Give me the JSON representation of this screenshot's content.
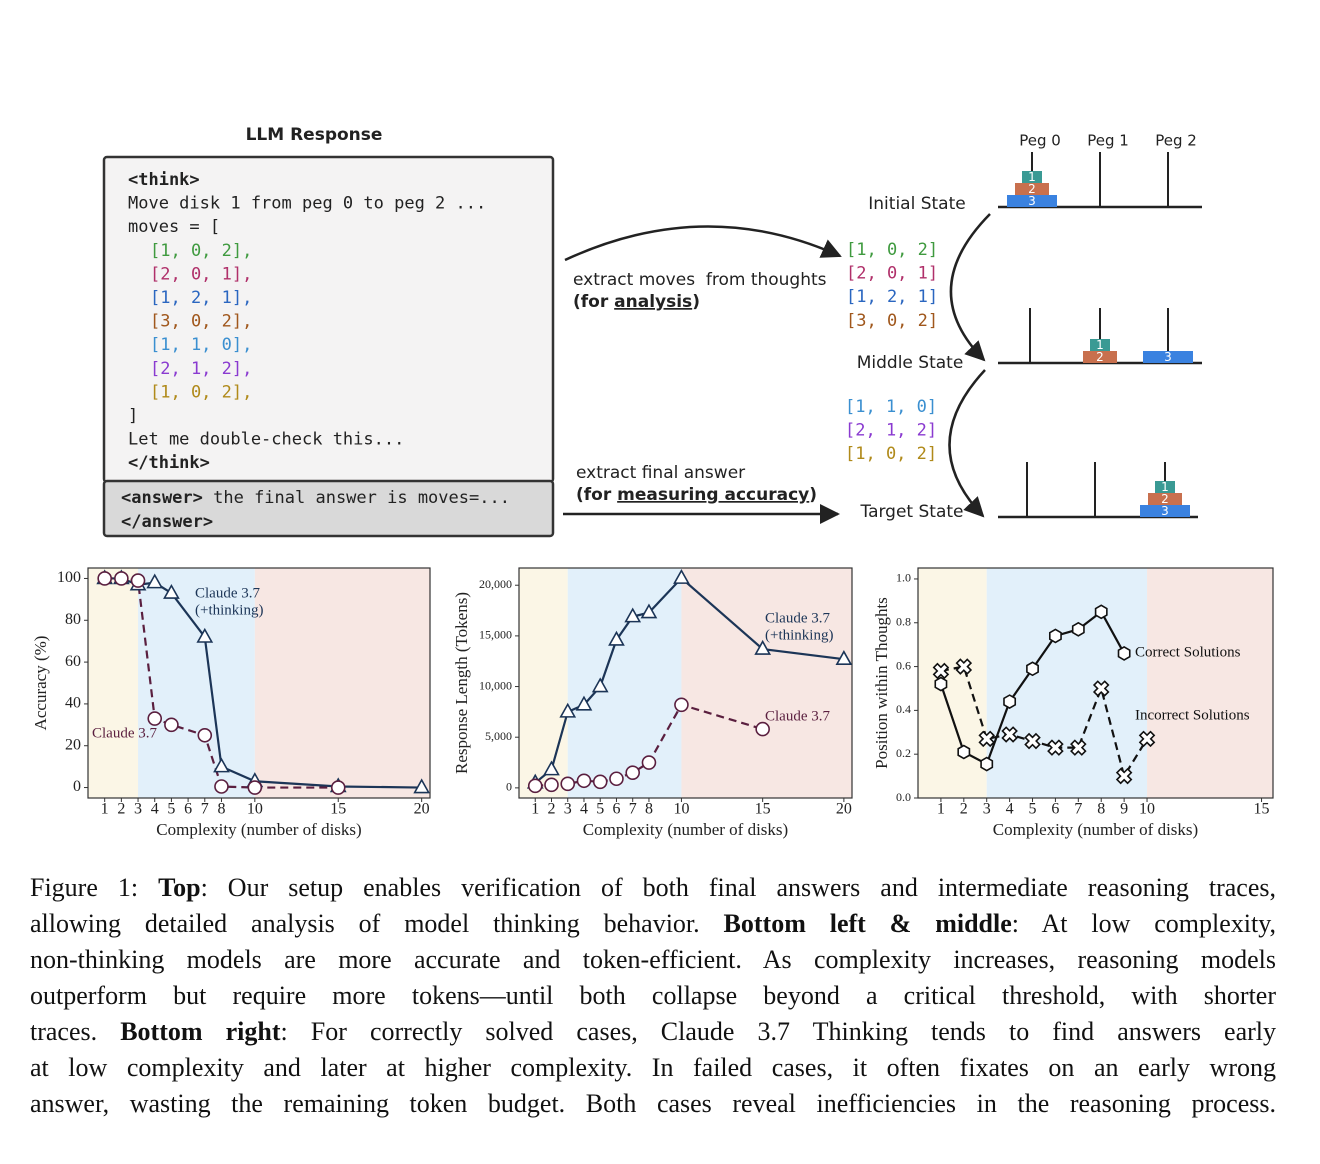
{
  "llm_response": {
    "title": "LLM Response",
    "lines_before": [
      "<think>",
      "Move disk 1 from peg 0 to peg 2 ...",
      "moves = ["
    ],
    "moves": [
      {
        "text": "[1, 0, 2],",
        "color": "#3f9a3f"
      },
      {
        "text": "[2, 0, 1],",
        "color": "#b0306a"
      },
      {
        "text": "[1, 2, 1],",
        "color": "#2a66c0"
      },
      {
        "text": "[3, 0, 2],",
        "color": "#a0571c"
      },
      {
        "text": "[1, 1, 0],",
        "color": "#3a8fd0"
      },
      {
        "text": "[2, 1, 2],",
        "color": "#8a3ad0"
      },
      {
        "text": "[1, 0, 2],",
        "color": "#b08a1a"
      }
    ],
    "lines_after": [
      "]",
      "Let me double-check this...",
      "</think>"
    ],
    "answer": [
      "<answer>",
      " the final answer is moves=...",
      "</answer>"
    ]
  },
  "arrow_moves": {
    "line1": "extract moves  from thoughts",
    "line2": [
      "(for ",
      "analysis",
      ")"
    ]
  },
  "arrow_answer": {
    "line1": "extract final answer",
    "line2": [
      "(for ",
      "measuring accuracy",
      ")"
    ]
  },
  "pegs": [
    "Peg 0",
    "Peg 1",
    "Peg 2"
  ],
  "disk_labels": [
    "1",
    "2",
    "3"
  ],
  "states": [
    "Initial State",
    "Middle State",
    "Target State"
  ],
  "extracted_moves_first": [
    {
      "text": "[1, 0, 2]",
      "color": "#3f9a3f"
    },
    {
      "text": "[2, 0, 1]",
      "color": "#b0306a"
    },
    {
      "text": "[1, 2, 1]",
      "color": "#2a66c0"
    },
    {
      "text": "[3, 0, 2]",
      "color": "#a0571c"
    }
  ],
  "extracted_moves_second": [
    {
      "text": "[1, 1, 0]",
      "color": "#3a8fd0"
    },
    {
      "text": "[2, 1, 2]",
      "color": "#8a3ad0"
    },
    {
      "text": "[1, 0, 2]",
      "color": "#b08a1a"
    }
  ],
  "chart_data": [
    {
      "type": "line",
      "x_label": "Complexity (number of disks)",
      "y_label": "Accuracy (%)",
      "xlim": [
        0,
        20.5
      ],
      "ylim": [
        -5,
        105
      ],
      "xticks": [
        1,
        2,
        3,
        4,
        5,
        6,
        7,
        8,
        10,
        15,
        20
      ],
      "yticks": [
        0,
        20,
        40,
        60,
        80,
        100
      ],
      "regions": [
        {
          "from": 0,
          "to": 3,
          "color": "#fbf6e6"
        },
        {
          "from": 3,
          "to": 10,
          "color": "#e2f0fa"
        },
        {
          "from": 10,
          "to": 20.5,
          "color": "#f7e7e3"
        }
      ],
      "series": [
        {
          "name_lines": [
            "Claude 3.7",
            "(+thinking)"
          ],
          "color": "#1c3557",
          "marker": "triangle",
          "dashed": false,
          "x": [
            1,
            2,
            3,
            4,
            5,
            7,
            8,
            10,
            15,
            20
          ],
          "values": [
            100,
            100,
            97,
            98,
            93,
            72,
            10,
            3,
            0.5,
            0
          ]
        },
        {
          "name_lines": [
            "Claude 3.7"
          ],
          "color": "#5a1f3f",
          "marker": "circle",
          "dashed": true,
          "x": [
            1,
            2,
            3,
            4,
            5,
            7,
            8,
            10,
            15
          ],
          "values": [
            100,
            100,
            99,
            33,
            30,
            25,
            0.5,
            0,
            0
          ]
        }
      ]
    },
    {
      "type": "line",
      "x_label": "Complexity (number of disks)",
      "y_label": "Response Length (Tokens)",
      "xlim": [
        0,
        20.5
      ],
      "ylim": [
        -1000,
        21700
      ],
      "xticks": [
        1,
        2,
        3,
        4,
        5,
        6,
        7,
        8,
        10,
        15,
        20
      ],
      "yticks": [
        0,
        {
          "value": 5000,
          "label": "5,000"
        },
        {
          "value": 10000,
          "label": "10,000"
        },
        {
          "value": 15000,
          "label": "15,000"
        },
        {
          "value": 20000,
          "label": "20,000"
        }
      ],
      "regions": [
        {
          "from": 0,
          "to": 3,
          "color": "#fbf6e6"
        },
        {
          "from": 3,
          "to": 10,
          "color": "#e2f0fa"
        },
        {
          "from": 10,
          "to": 20.5,
          "color": "#f7e7e3"
        }
      ],
      "series": [
        {
          "name_lines": [
            "Claude 3.7",
            "(+thinking)"
          ],
          "color": "#1c3557",
          "marker": "triangle",
          "dashed": false,
          "x": [
            1,
            2,
            3,
            4,
            5,
            6,
            7,
            8,
            10,
            15,
            20
          ],
          "values": [
            500,
            1800,
            7500,
            8200,
            10000,
            14600,
            16900,
            17300,
            20700,
            13700,
            12700
          ]
        },
        {
          "name_lines": [
            "Claude 3.7"
          ],
          "color": "#5a1f3f",
          "marker": "circle",
          "dashed": true,
          "x": [
            1,
            2,
            3,
            4,
            5,
            6,
            7,
            8,
            10,
            15
          ],
          "values": [
            200,
            300,
            400,
            700,
            600,
            900,
            1500,
            2500,
            8200,
            5800
          ]
        }
      ]
    },
    {
      "type": "line",
      "x_label": "Complexity (number of disks)",
      "y_label": "Position within Thoughts",
      "xlim": [
        0,
        15.5
      ],
      "ylim": [
        0,
        1.05
      ],
      "xticks": [
        1,
        2,
        3,
        4,
        5,
        6,
        7,
        8,
        9,
        10,
        15
      ],
      "yticks": [
        {
          "value": 0,
          "label": "0.0"
        },
        0.2,
        0.4,
        0.6,
        0.8,
        {
          "value": 1,
          "label": "1.0"
        }
      ],
      "regions": [
        {
          "from": 0,
          "to": 3,
          "color": "#fbf6e6"
        },
        {
          "from": 3,
          "to": 10,
          "color": "#e2f0fa"
        },
        {
          "from": 10,
          "to": 15.5,
          "color": "#f7e7e3"
        }
      ],
      "series": [
        {
          "name_lines": [
            "Correct Solutions"
          ],
          "color": "#111111",
          "marker": "hexagon",
          "dashed": false,
          "x": [
            1,
            2,
            3,
            4,
            5,
            6,
            7,
            8,
            9
          ],
          "values": [
            0.52,
            0.21,
            0.155,
            0.44,
            0.59,
            0.74,
            0.77,
            0.85,
            0.66
          ]
        },
        {
          "name_lines": [
            "Incorrect Solutions"
          ],
          "color": "#111111",
          "marker": "x",
          "dashed": true,
          "x": [
            1,
            2,
            3,
            4,
            5,
            6,
            7,
            8,
            9,
            10
          ],
          "values": [
            0.58,
            0.6,
            0.27,
            0.29,
            0.26,
            0.23,
            0.23,
            0.5,
            0.1,
            0.27
          ]
        }
      ]
    }
  ],
  "caption": [
    [
      {
        "text": "Figure 1: "
      },
      {
        "text": "Top",
        "bold": true
      },
      {
        "text": ": Our setup enables verification of both final answers and intermediate reasoning traces,"
      }
    ],
    [
      {
        "text": "allowing detailed analysis of model thinking behavior. "
      },
      {
        "text": "Bottom left & middle",
        "bold": true
      },
      {
        "text": ": At low complexity,"
      }
    ],
    [
      {
        "text": "non-thinking models are more accurate and token-efficient. As complexity increases, reasoning models"
      }
    ],
    [
      {
        "text": "outperform but require more tokens—until both collapse beyond a critical threshold, with shorter"
      }
    ],
    [
      {
        "text": "traces. "
      },
      {
        "text": "Bottom right",
        "bold": true
      },
      {
        "text": ": For correctly solved cases, Claude 3.7 Thinking tends to find answers early"
      }
    ],
    [
      {
        "text": "at low complexity and later at higher complexity. In failed cases, it often fixates on an early wrong"
      }
    ],
    [
      {
        "text": "answer, wasting the remaining token budget. Both cases reveal inefficiencies in the reasoning process."
      }
    ]
  ]
}
